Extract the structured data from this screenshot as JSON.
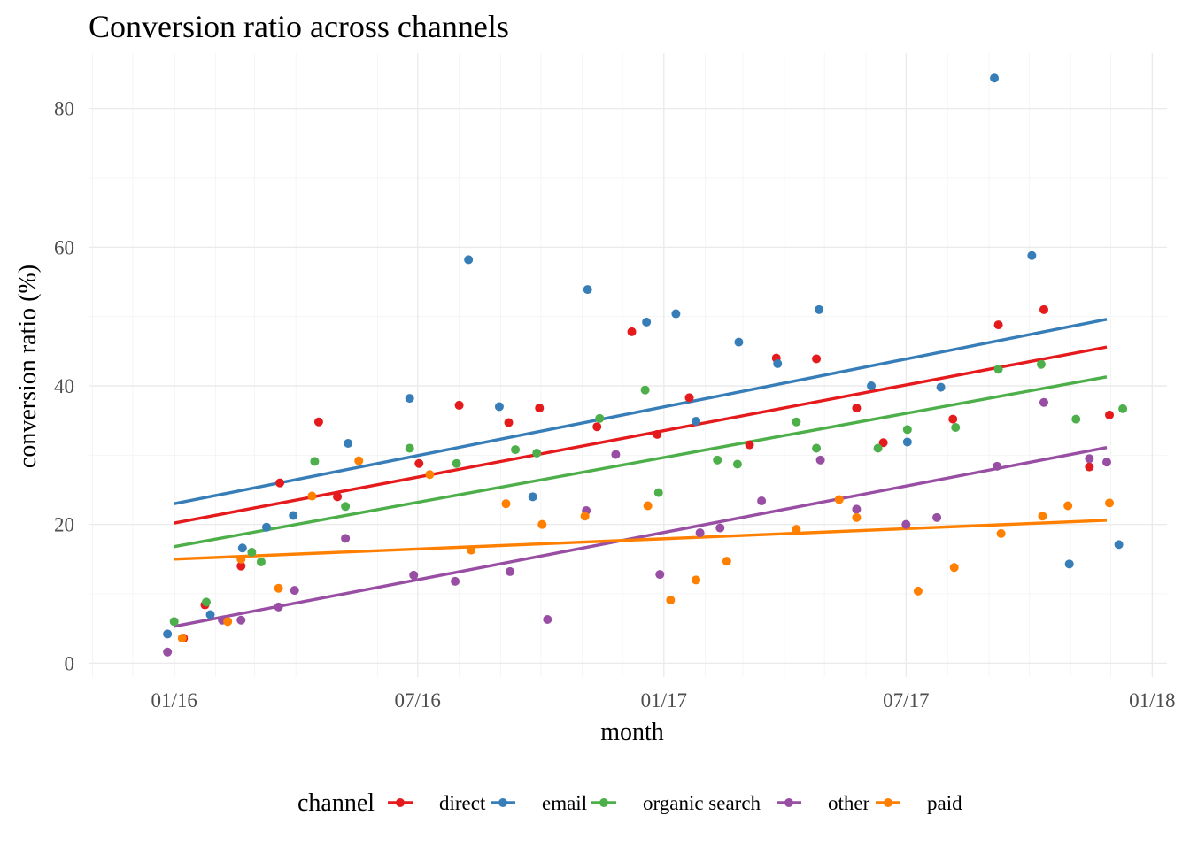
{
  "chart_data": {
    "type": "scatter",
    "title": "Conversion ratio across channels",
    "xlabel": "month",
    "ylabel": "conversion ratio (%)",
    "x_tick_labels": [
      "01/16",
      "07/16",
      "01/17",
      "07/17",
      "01/18"
    ],
    "x_tick_dates": [
      "2016-01-01",
      "2016-07-01",
      "2017-01-01",
      "2017-07-01",
      "2018-01-01"
    ],
    "xlim": [
      "2015-10-29",
      "2018-01-12"
    ],
    "y_ticks": [
      0,
      20,
      40,
      60,
      80
    ],
    "ylim": [
      -2,
      88
    ],
    "grid": true,
    "legend_title": "channel",
    "legend_position": "bottom",
    "trend_lines": "linear fit per channel",
    "series": [
      {
        "name": "direct",
        "color": "#E41A1C",
        "trend": [
          {
            "x": "2016-01-01",
            "y": 20.2
          },
          {
            "x": "2017-11-28",
            "y": 45.6
          }
        ],
        "points": [
          {
            "x": "2016-01-08",
            "y": 3.6
          },
          {
            "x": "2016-01-24",
            "y": 8.4
          },
          {
            "x": "2016-02-20",
            "y": 14.0
          },
          {
            "x": "2016-03-20",
            "y": 26.0
          },
          {
            "x": "2016-04-18",
            "y": 34.8
          },
          {
            "x": "2016-05-02",
            "y": 24.0
          },
          {
            "x": "2016-07-02",
            "y": 28.8
          },
          {
            "x": "2016-08-01",
            "y": 37.2
          },
          {
            "x": "2016-09-07",
            "y": 34.7
          },
          {
            "x": "2016-09-30",
            "y": 36.8
          },
          {
            "x": "2016-11-12",
            "y": 34.1
          },
          {
            "x": "2016-12-08",
            "y": 47.8
          },
          {
            "x": "2016-12-27",
            "y": 33.0
          },
          {
            "x": "2017-01-20",
            "y": 38.3
          },
          {
            "x": "2017-03-06",
            "y": 31.5
          },
          {
            "x": "2017-03-26",
            "y": 44.0
          },
          {
            "x": "2017-04-25",
            "y": 43.9
          },
          {
            "x": "2017-05-25",
            "y": 36.8
          },
          {
            "x": "2017-06-14",
            "y": 31.8
          },
          {
            "x": "2017-08-05",
            "y": 35.2
          },
          {
            "x": "2017-09-08",
            "y": 48.8
          },
          {
            "x": "2017-10-12",
            "y": 51.0
          },
          {
            "x": "2017-11-15",
            "y": 28.3
          },
          {
            "x": "2017-11-30",
            "y": 35.8
          }
        ]
      },
      {
        "name": "email",
        "color": "#377EB8",
        "trend": [
          {
            "x": "2016-01-01",
            "y": 23.0
          },
          {
            "x": "2017-11-28",
            "y": 49.6
          }
        ],
        "points": [
          {
            "x": "2015-12-27",
            "y": 4.2
          },
          {
            "x": "2016-01-28",
            "y": 7.0
          },
          {
            "x": "2016-02-21",
            "y": 16.6
          },
          {
            "x": "2016-03-10",
            "y": 19.6
          },
          {
            "x": "2016-03-30",
            "y": 21.3
          },
          {
            "x": "2016-05-10",
            "y": 31.7
          },
          {
            "x": "2016-06-25",
            "y": 38.2
          },
          {
            "x": "2016-08-08",
            "y": 58.2
          },
          {
            "x": "2016-08-31",
            "y": 37.0
          },
          {
            "x": "2016-09-25",
            "y": 24.0
          },
          {
            "x": "2016-11-05",
            "y": 53.9
          },
          {
            "x": "2016-12-19",
            "y": 49.2
          },
          {
            "x": "2017-01-10",
            "y": 50.4
          },
          {
            "x": "2017-01-25",
            "y": 34.9
          },
          {
            "x": "2017-02-26",
            "y": 46.3
          },
          {
            "x": "2017-03-27",
            "y": 43.2
          },
          {
            "x": "2017-04-27",
            "y": 51.0
          },
          {
            "x": "2017-06-05",
            "y": 40.0
          },
          {
            "x": "2017-07-02",
            "y": 31.9
          },
          {
            "x": "2017-07-27",
            "y": 39.8
          },
          {
            "x": "2017-09-05",
            "y": 84.4
          },
          {
            "x": "2017-10-03",
            "y": 58.8
          },
          {
            "x": "2017-10-31",
            "y": 14.3
          },
          {
            "x": "2017-12-07",
            "y": 17.1
          }
        ]
      },
      {
        "name": "organic search",
        "color": "#4DAF4A",
        "trend": [
          {
            "x": "2016-01-01",
            "y": 16.8
          },
          {
            "x": "2017-11-28",
            "y": 41.3
          }
        ],
        "points": [
          {
            "x": "2016-01-01",
            "y": 6.0
          },
          {
            "x": "2016-01-25",
            "y": 8.8
          },
          {
            "x": "2016-03-06",
            "y": 14.6
          },
          {
            "x": "2016-02-28",
            "y": 16.0
          },
          {
            "x": "2016-04-15",
            "y": 29.1
          },
          {
            "x": "2016-05-08",
            "y": 22.6
          },
          {
            "x": "2016-06-25",
            "y": 31.0
          },
          {
            "x": "2016-07-30",
            "y": 28.8
          },
          {
            "x": "2016-09-12",
            "y": 30.8
          },
          {
            "x": "2016-09-28",
            "y": 30.3
          },
          {
            "x": "2016-11-14",
            "y": 35.3
          },
          {
            "x": "2016-12-18",
            "y": 39.4
          },
          {
            "x": "2016-12-28",
            "y": 24.6
          },
          {
            "x": "2017-02-10",
            "y": 29.3
          },
          {
            "x": "2017-02-25",
            "y": 28.7
          },
          {
            "x": "2017-04-10",
            "y": 34.8
          },
          {
            "x": "2017-04-25",
            "y": 31.0
          },
          {
            "x": "2017-06-10",
            "y": 31.0
          },
          {
            "x": "2017-07-02",
            "y": 33.7
          },
          {
            "x": "2017-08-07",
            "y": 34.0
          },
          {
            "x": "2017-09-08",
            "y": 42.4
          },
          {
            "x": "2017-10-10",
            "y": 43.1
          },
          {
            "x": "2017-11-05",
            "y": 35.2
          },
          {
            "x": "2017-12-10",
            "y": 36.7
          }
        ]
      },
      {
        "name": "other",
        "color": "#984EA3",
        "trend": [
          {
            "x": "2016-01-01",
            "y": 5.3
          },
          {
            "x": "2017-11-28",
            "y": 31.1
          }
        ],
        "points": [
          {
            "x": "2015-12-27",
            "y": 1.6
          },
          {
            "x": "2016-02-06",
            "y": 6.2
          },
          {
            "x": "2016-02-20",
            "y": 6.2
          },
          {
            "x": "2016-03-19",
            "y": 8.1
          },
          {
            "x": "2016-03-31",
            "y": 10.5
          },
          {
            "x": "2016-05-08",
            "y": 18.0
          },
          {
            "x": "2016-06-28",
            "y": 12.7
          },
          {
            "x": "2016-07-29",
            "y": 11.8
          },
          {
            "x": "2016-09-08",
            "y": 13.2
          },
          {
            "x": "2016-10-06",
            "y": 6.3
          },
          {
            "x": "2016-11-04",
            "y": 22.0
          },
          {
            "x": "2016-11-26",
            "y": 30.1
          },
          {
            "x": "2016-12-29",
            "y": 12.8
          },
          {
            "x": "2017-01-28",
            "y": 18.8
          },
          {
            "x": "2017-02-12",
            "y": 19.5
          },
          {
            "x": "2017-03-15",
            "y": 23.4
          },
          {
            "x": "2017-04-28",
            "y": 29.3
          },
          {
            "x": "2017-05-25",
            "y": 22.2
          },
          {
            "x": "2017-07-01",
            "y": 20.0
          },
          {
            "x": "2017-07-24",
            "y": 21.0
          },
          {
            "x": "2017-09-07",
            "y": 28.4
          },
          {
            "x": "2017-10-12",
            "y": 37.6
          },
          {
            "x": "2017-11-15",
            "y": 29.5
          },
          {
            "x": "2017-11-28",
            "y": 29.0
          }
        ]
      },
      {
        "name": "paid",
        "color": "#FF7F00",
        "trend": [
          {
            "x": "2016-01-01",
            "y": 15.0
          },
          {
            "x": "2017-11-28",
            "y": 20.6
          }
        ],
        "points": [
          {
            "x": "2016-01-07",
            "y": 3.6
          },
          {
            "x": "2016-02-10",
            "y": 6.0
          },
          {
            "x": "2016-02-20",
            "y": 15.0
          },
          {
            "x": "2016-03-19",
            "y": 10.8
          },
          {
            "x": "2016-04-13",
            "y": 24.1
          },
          {
            "x": "2016-05-18",
            "y": 29.2
          },
          {
            "x": "2016-07-10",
            "y": 27.2
          },
          {
            "x": "2016-08-10",
            "y": 16.3
          },
          {
            "x": "2016-09-05",
            "y": 23.0
          },
          {
            "x": "2016-10-02",
            "y": 20.0
          },
          {
            "x": "2016-11-03",
            "y": 21.2
          },
          {
            "x": "2016-12-20",
            "y": 22.7
          },
          {
            "x": "2017-01-06",
            "y": 9.1
          },
          {
            "x": "2017-01-25",
            "y": 12.0
          },
          {
            "x": "2017-02-17",
            "y": 14.7
          },
          {
            "x": "2017-04-10",
            "y": 19.3
          },
          {
            "x": "2017-05-12",
            "y": 23.6
          },
          {
            "x": "2017-05-25",
            "y": 21.0
          },
          {
            "x": "2017-07-10",
            "y": 10.4
          },
          {
            "x": "2017-08-06",
            "y": 13.8
          },
          {
            "x": "2017-09-10",
            "y": 18.7
          },
          {
            "x": "2017-10-11",
            "y": 21.2
          },
          {
            "x": "2017-10-30",
            "y": 22.7
          },
          {
            "x": "2017-11-30",
            "y": 23.1
          }
        ]
      }
    ]
  }
}
